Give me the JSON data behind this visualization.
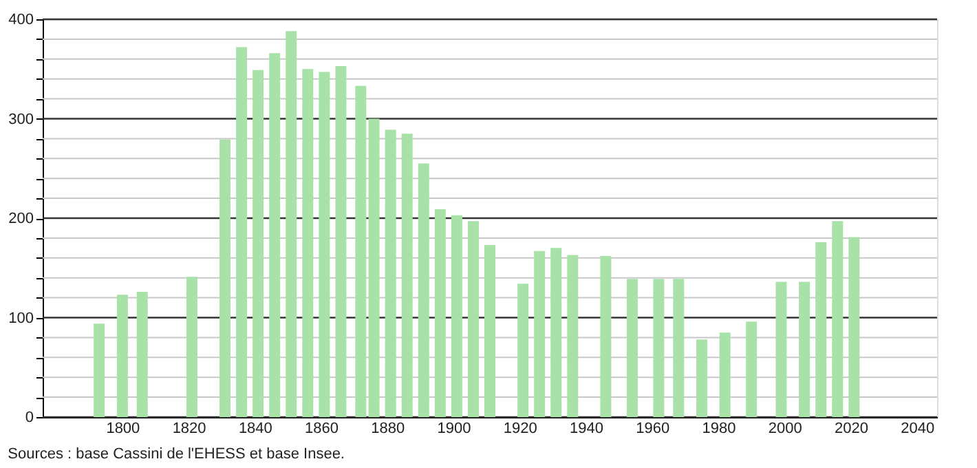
{
  "chart_data": {
    "type": "bar",
    "color": "#a8e2a8",
    "x": [
      1793,
      1800,
      1806,
      1821,
      1831,
      1836,
      1841,
      1846,
      1851,
      1856,
      1861,
      1866,
      1872,
      1876,
      1881,
      1886,
      1891,
      1896,
      1901,
      1906,
      1911,
      1921,
      1926,
      1931,
      1936,
      1946,
      1954,
      1962,
      1968,
      1975,
      1982,
      1990,
      1999,
      2006,
      2011,
      2016,
      2021
    ],
    "values": [
      94,
      123,
      126,
      141,
      279,
      372,
      349,
      366,
      388,
      350,
      347,
      353,
      333,
      300,
      289,
      285,
      255,
      209,
      203,
      197,
      173,
      134,
      167,
      170,
      163,
      162,
      139,
      139,
      139,
      78,
      85,
      96,
      136,
      136,
      176,
      197,
      181
    ],
    "xlim": [
      1778,
      2044
    ],
    "xticks": [
      1800,
      1820,
      1840,
      1860,
      1880,
      1900,
      1920,
      1940,
      1960,
      1980,
      2000,
      2020,
      2040
    ],
    "ylim": [
      0,
      400
    ],
    "yticks": [
      0,
      {
        "value": 20,
        "label": null
      },
      {
        "value": 40,
        "label": null
      },
      {
        "value": 60,
        "label": null
      },
      {
        "value": 80,
        "label": null
      },
      100,
      {
        "value": 120,
        "label": null
      },
      {
        "value": 140,
        "label": null
      },
      {
        "value": 160,
        "label": null
      },
      {
        "value": 180,
        "label": null
      },
      200,
      {
        "value": 220,
        "label": null
      },
      {
        "value": 240,
        "label": null
      },
      {
        "value": 260,
        "label": null
      },
      {
        "value": 280,
        "label": null
      },
      300,
      {
        "value": 320,
        "label": null
      },
      {
        "value": 340,
        "label": null
      },
      {
        "value": 360,
        "label": null
      },
      {
        "value": 380,
        "label": null
      },
      400
    ],
    "grid": "y",
    "annotations": [
      "Sources : base Cassini de l'EHESS et base Insee."
    ]
  }
}
